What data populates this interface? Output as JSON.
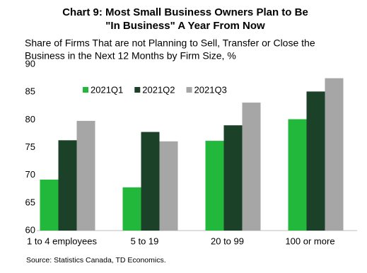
{
  "chart_data": {
    "type": "bar",
    "title": [
      "Chart 9: Most Small Business Owners Plan to Be",
      "\"In Business\" A Year From Now"
    ],
    "subtitle": [
      "Share of Firms That are not Planning to Sell, Transfer or Close the",
      "Business in the Next 12 Months by Firm Size, %"
    ],
    "source": "Source: Statistics Canada, TD Economics.",
    "categories": [
      "1 to 4 employees",
      "5 to 19",
      "20 to 99",
      "100 or more"
    ],
    "series": [
      {
        "name": "2021Q1",
        "color": "#21b83b",
        "values": [
          69.2,
          67.8,
          76.2,
          80.1
        ]
      },
      {
        "name": "2021Q2",
        "color": "#1b4229",
        "values": [
          76.3,
          77.8,
          79.0,
          85.1
        ]
      },
      {
        "name": "2021Q3",
        "color": "#a6a6a7",
        "values": [
          79.8,
          76.1,
          83.1,
          87.5
        ]
      }
    ],
    "ylim": [
      60,
      90
    ],
    "yticks": [
      60,
      65,
      70,
      75,
      80,
      85,
      90
    ],
    "grid": false,
    "legend": "top"
  }
}
